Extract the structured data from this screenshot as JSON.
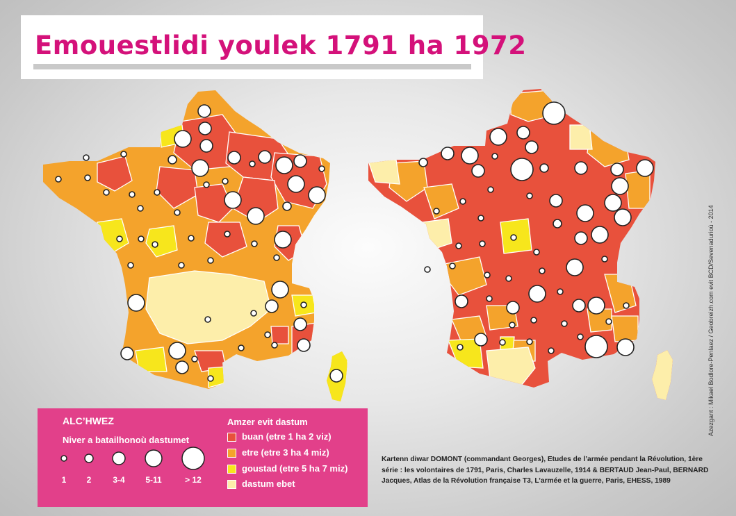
{
  "title": "Emouestlidi youlek 1791 ha 1972",
  "legend": {
    "title": "ALC’HWEZ",
    "subtitle": "Niver a batailhonoù dastumet",
    "sizes": [
      {
        "label": "1",
        "level": 1
      },
      {
        "label": "2",
        "level": 2
      },
      {
        "label": "3-4",
        "level": 3
      },
      {
        "label": "5-11",
        "level": 4
      },
      {
        "label": "> 12",
        "level": 5
      }
    ],
    "categories_title": "Amzer evit dastum",
    "categories": [
      {
        "label": "buan (etre 1 ha 2 viz)",
        "color": "#e8513c"
      },
      {
        "label": "etre (etre 3 ha 4 miz)",
        "color": "#f4a32c"
      },
      {
        "label": "goustad (etre 5 ha 7 miz)",
        "color": "#f7e61c"
      },
      {
        "label": "dastum ebet",
        "color": "#fdeeaa"
      }
    ]
  },
  "source": "Kartenn diwar DOMONT (commandant Georges), Etudes de l’armée pendant la Révolution, 1ère série : les volontaires de 1791, Paris, Charles Lavauzelle, 1914 & BERTAUD Jean-Paul, BERNARD Jacques, Atlas de la Révolution française T3, L’armée et la guerre, Paris, EHESS, 1989",
  "credit": "Azezgant : Mikael Bodlore-Penlaez / Geobreizh.com evit BCD/Sevenadurioù - 2014",
  "colors": {
    "border": "#ffffff",
    "circle_fill": "#ffffff",
    "circle_stroke": "#222222"
  }
}
